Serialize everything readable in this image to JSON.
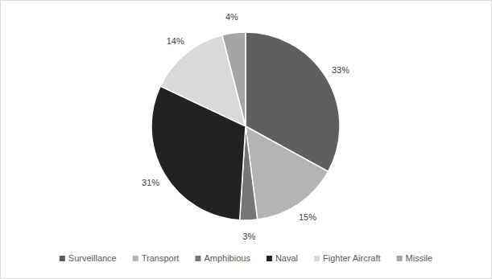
{
  "chart_data": {
    "type": "pie",
    "categories": [
      "Surveillance",
      "Transport",
      "Amphibious",
      "Naval",
      "Fighter Aircraft",
      "Missile"
    ],
    "values": [
      33,
      15,
      3,
      31,
      14,
      4
    ],
    "value_labels": [
      "33%",
      "15%",
      "3%",
      "31%",
      "14%",
      "4%"
    ],
    "colors": [
      "#5f5f5f",
      "#b4b4b4",
      "#767676",
      "#222222",
      "#d9d9d9",
      "#a5a5a5"
    ],
    "data_labels": true,
    "legend": "bottom"
  }
}
